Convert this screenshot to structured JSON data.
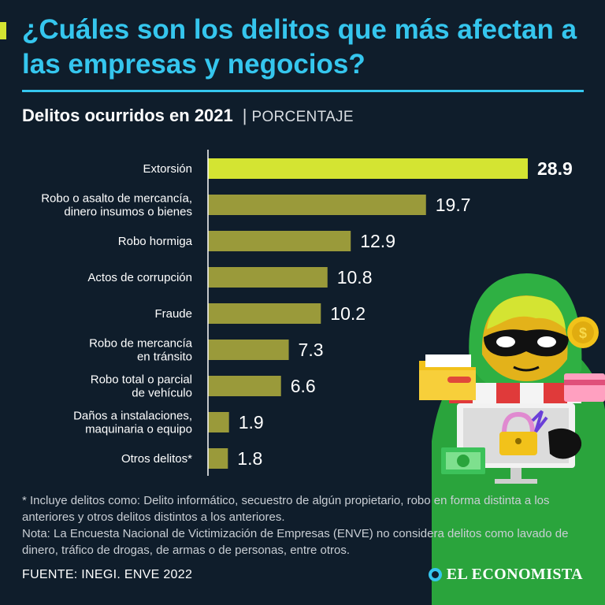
{
  "header": {
    "title": "¿Cuáles son los delitos que más afectan a las empresas y negocios?",
    "subtitle": "Delitos ocurridos en 2021",
    "separator": "|",
    "unit": "PORCENTAJE"
  },
  "chart_data": {
    "type": "bar",
    "orientation": "horizontal",
    "title": "Delitos ocurridos en 2021",
    "xlabel": "PORCENTAJE",
    "ylabel": "",
    "xlim": [
      0,
      30
    ],
    "grid": false,
    "categories": [
      [
        "Extorsión"
      ],
      [
        "Robo o asalto de mercancía,",
        "dinero insumos o bienes"
      ],
      [
        "Robo hormiga"
      ],
      [
        "Actos de corrupción"
      ],
      [
        "Fraude"
      ],
      [
        "Robo de mercancía",
        "en tránsito"
      ],
      [
        "Robo total o parcial",
        "de vehículo"
      ],
      [
        "Daños a instalaciones,",
        "maquinaria o equipo"
      ],
      [
        "Otros delitos*"
      ]
    ],
    "values": [
      28.9,
      19.7,
      12.9,
      10.8,
      10.2,
      7.3,
      6.6,
      1.9,
      1.8
    ],
    "value_labels": [
      "28.9",
      "19.7",
      "12.9",
      "10.8",
      "10.2",
      "7.3",
      "6.6",
      "1.9",
      "1.8"
    ],
    "colors": {
      "highlight": "#d4e432",
      "bar": "#9a9a3a",
      "axis": "#ffffff"
    }
  },
  "footnotes": {
    "asterisk": "* Incluye delitos como: Delito informático, secuestro de algún propietario, robo en forma distinta a los anteriores y otros delitos distintos a los anteriores.",
    "note": "Nota: La Encuesta Nacional de Victimización de Empresas (ENVE) no considera delitos como lavado de dinero, tráfico de drogas, de armas o de personas, entre otros."
  },
  "footer": {
    "source": "FUENTE: INEGI. ENVE 2022",
    "brand": "EL ECONOMISTA"
  },
  "colors": {
    "background": "#0f1d2b",
    "title": "#35c6ee",
    "accent": "#d4e432"
  }
}
